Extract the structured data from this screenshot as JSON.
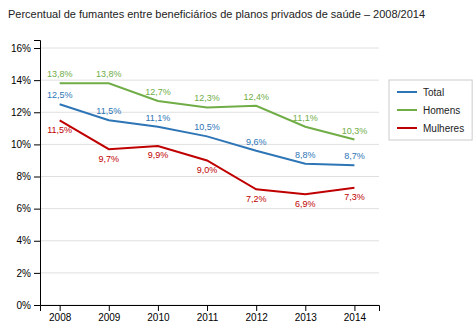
{
  "chart_data": {
    "type": "line",
    "title": "Percentual de fumantes entre beneficiários de planos privados de saúde – 2008/2014",
    "x": [
      2008,
      2009,
      2010,
      2011,
      2012,
      2013,
      2014
    ],
    "series": [
      {
        "name": "Total",
        "color": "#2e75b6",
        "values": [
          12.5,
          11.5,
          11.1,
          10.5,
          9.6,
          8.8,
          8.7
        ],
        "value_labels": [
          "12,5%",
          "11,5%",
          "11,1%",
          "10,5%",
          "9,6%",
          "8,8%",
          "8,7%"
        ]
      },
      {
        "name": "Homens",
        "color": "#70ad47",
        "values": [
          13.8,
          13.8,
          12.7,
          12.3,
          12.4,
          11.1,
          10.3
        ],
        "value_labels": [
          "13,8%",
          "13,8%",
          "12,7%",
          "12,3%",
          "12,4%",
          "11,1%",
          "10,3%"
        ]
      },
      {
        "name": "Mulheres",
        "color": "#c00000",
        "values": [
          11.5,
          9.7,
          9.9,
          9.0,
          7.2,
          6.9,
          7.3
        ],
        "value_labels": [
          "11,5%",
          "9,7%",
          "9,9%",
          "9,0%",
          "7,2%",
          "6,9%",
          "7,3%"
        ]
      }
    ],
    "xlim": [
      2007.6,
      2014.5
    ],
    "xticks": [
      2008,
      2009,
      2010,
      2011,
      2012,
      2013,
      2014
    ],
    "ylim": [
      0,
      16.5
    ],
    "yticks": [
      {
        "value": 0,
        "label": "0%"
      },
      {
        "value": 2,
        "label": "2%"
      },
      {
        "value": 4,
        "label": "4%"
      },
      {
        "value": 6,
        "label": "6%"
      },
      {
        "value": 8,
        "label": "8%"
      },
      {
        "value": 10,
        "label": "10%"
      },
      {
        "value": 12,
        "label": "12%"
      },
      {
        "value": 14,
        "label": "14%"
      },
      {
        "value": 16,
        "label": "16%"
      }
    ],
    "grid": true,
    "legend": "right",
    "data_labels": true
  }
}
